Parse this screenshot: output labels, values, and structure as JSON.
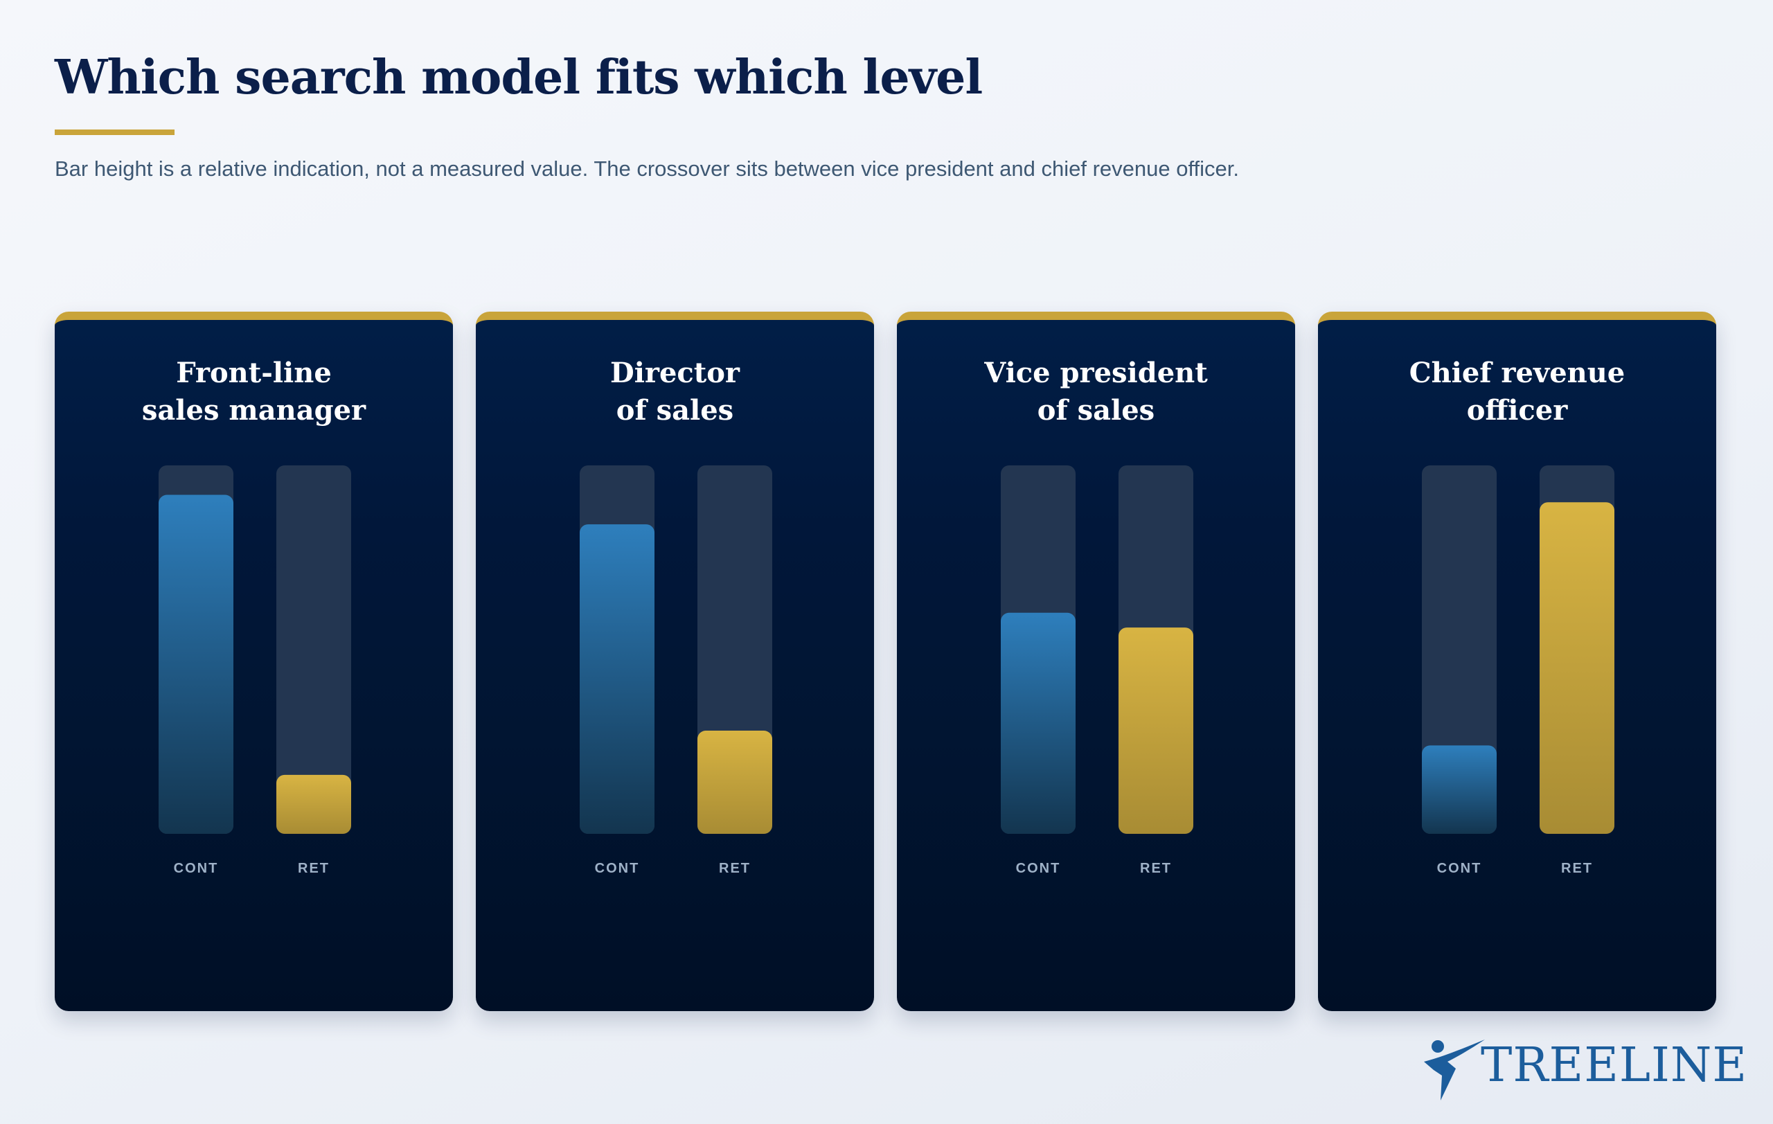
{
  "title": "Which search model fits which level",
  "subtitle": "Bar height is a relative indication, not a measured value. The crossover sits between vice president and chief revenue officer.",
  "brand": {
    "name": "TREELINE",
    "logo_icon": "runner-figure-icon"
  },
  "colors": {
    "title": "#0b1f4a",
    "accent_gold": "#c9a43a",
    "card_bg": "#011a3f",
    "cont_bar": "#2e7fbd",
    "ret_bar": "#d8b443",
    "track": "#233651",
    "brand": "#1c5d9c"
  },
  "chart_data": {
    "type": "bar",
    "title": "Which search model fits which level",
    "subtitle": "Bar height is a relative indication, not a measured value. The crossover sits between vice president and chief revenue officer.",
    "ylim": [
      0,
      100
    ],
    "grid": false,
    "categories": [
      [
        "Front-line",
        "sales manager"
      ],
      [
        "Director",
        "of sales"
      ],
      [
        "Vice president",
        "of sales"
      ],
      [
        "Chief revenue",
        "officer"
      ]
    ],
    "series": [
      {
        "name": "CONT",
        "color": "#2e7fbd",
        "values": [
          92,
          84,
          60,
          24
        ]
      },
      {
        "name": "RET",
        "color": "#d8b443",
        "values": [
          16,
          28,
          56,
          90
        ]
      }
    ]
  }
}
